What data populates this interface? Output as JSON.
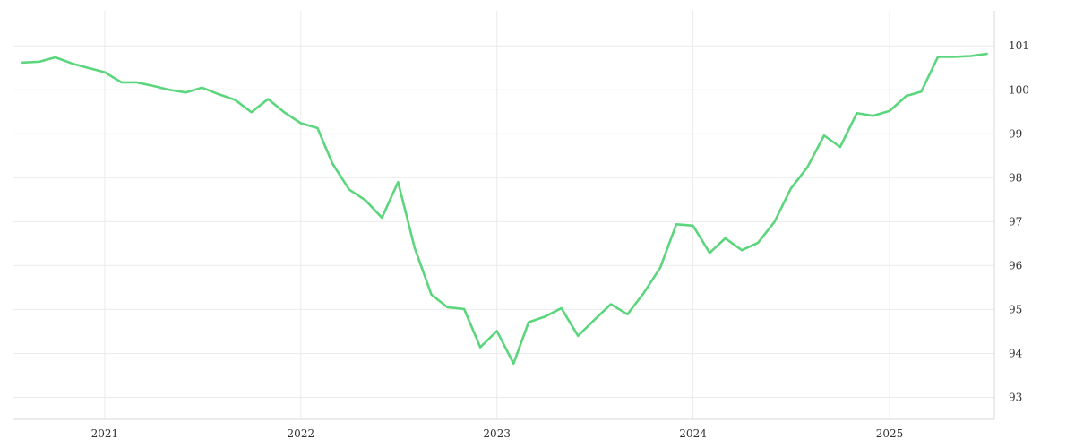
{
  "chart_data": {
    "type": "line",
    "title": "",
    "xlabel": "",
    "ylabel": "",
    "grid": true,
    "legend": "none",
    "color": "#5bd67d",
    "xlim": [
      "2020-07-15",
      "2025-07-15"
    ],
    "ylim": [
      92.5,
      101.8
    ],
    "x_ticks": [
      {
        "date": "2021-01-01",
        "label": "2021"
      },
      {
        "date": "2022-01-01",
        "label": "2022"
      },
      {
        "date": "2023-01-01",
        "label": "2023"
      },
      {
        "date": "2024-01-01",
        "label": "2024"
      },
      {
        "date": "2025-01-01",
        "label": "2025"
      }
    ],
    "y_ticks": [
      93,
      94,
      95,
      96,
      97,
      98,
      99,
      100,
      101
    ],
    "series": [
      {
        "x": [
          "2020-08-01",
          "2020-09-01",
          "2020-10-01",
          "2020-11-01",
          "2020-12-01",
          "2021-01-01",
          "2021-02-01",
          "2021-03-01",
          "2021-04-01",
          "2021-05-01",
          "2021-06-01",
          "2021-07-01",
          "2021-08-01",
          "2021-09-01",
          "2021-10-01",
          "2021-11-01",
          "2021-12-01",
          "2022-01-01",
          "2022-02-01",
          "2022-03-01",
          "2022-04-01",
          "2022-05-01",
          "2022-06-01",
          "2022-07-01",
          "2022-08-01",
          "2022-09-01",
          "2022-10-01",
          "2022-11-01",
          "2022-12-01",
          "2023-01-01",
          "2023-02-01",
          "2023-03-01",
          "2023-04-01",
          "2023-05-01",
          "2023-06-01",
          "2023-07-01",
          "2023-08-01",
          "2023-09-01",
          "2023-10-01",
          "2023-11-01",
          "2023-12-01",
          "2024-01-01",
          "2024-02-01",
          "2024-03-01",
          "2024-04-01",
          "2024-05-01",
          "2024-06-01",
          "2024-07-01",
          "2024-08-01",
          "2024-09-01",
          "2024-10-01",
          "2024-11-01",
          "2024-12-01",
          "2025-01-01",
          "2025-02-01",
          "2025-03-01",
          "2025-04-01",
          "2025-05-01",
          "2025-06-01",
          "2025-07-01"
        ],
        "y": [
          100.62,
          100.64,
          100.74,
          100.6,
          100.5,
          100.4,
          100.17,
          100.17,
          100.09,
          100.0,
          99.94,
          100.05,
          99.9,
          99.77,
          99.49,
          99.79,
          99.49,
          99.24,
          99.13,
          98.32,
          97.73,
          97.49,
          97.09,
          97.9,
          96.4,
          95.34,
          95.05,
          95.01,
          94.14,
          94.51,
          93.77,
          94.71,
          94.84,
          95.03,
          94.4,
          94.76,
          95.12,
          94.89,
          95.37,
          95.95,
          96.94,
          96.91,
          96.29,
          96.62,
          96.35,
          96.52,
          97.0,
          97.75,
          98.24,
          98.96,
          98.7,
          99.47,
          99.41,
          99.52,
          99.86,
          99.96,
          100.75,
          100.75,
          100.77,
          100.82
        ]
      }
    ]
  }
}
